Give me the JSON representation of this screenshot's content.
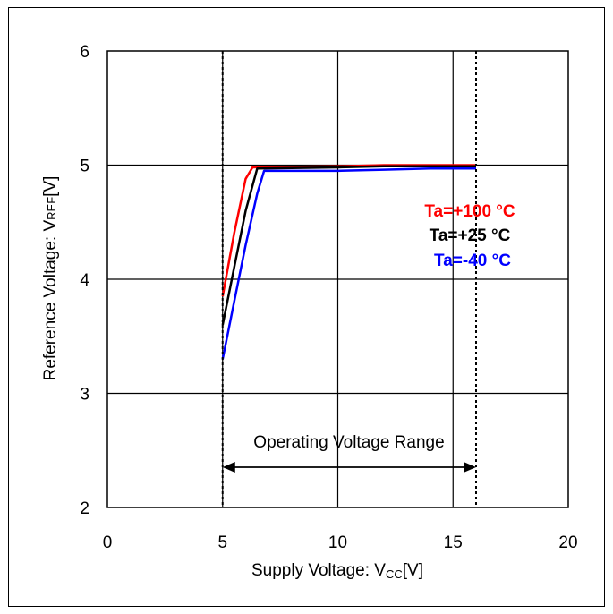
{
  "chart_data": {
    "type": "line",
    "title": "",
    "xlabel": "Supply Voltage: V",
    "xlabel_sub": "CC",
    "xlabel_unit": "[V]",
    "ylabel": "Reference Voltage: V",
    "ylabel_sub": "REF",
    "ylabel_unit": "[V]",
    "xlim": [
      0,
      20
    ],
    "ylim": [
      2,
      6
    ],
    "xticks": [
      0,
      5,
      10,
      15,
      20
    ],
    "yticks": [
      2,
      3,
      4,
      5,
      6
    ],
    "grid": true,
    "legend_position": "right",
    "series": [
      {
        "name": "Ta=+100 °C",
        "color": "#ff0000",
        "x": [
          5.0,
          5.5,
          6.0,
          6.3,
          8.0,
          10.0,
          12.0,
          14.0,
          16.0
        ],
        "y": [
          3.85,
          4.4,
          4.88,
          4.98,
          4.985,
          4.99,
          5.0,
          5.0,
          5.0
        ]
      },
      {
        "name": "Ta=+25 °C",
        "color": "#000000",
        "x": [
          5.0,
          5.5,
          6.0,
          6.5,
          8.0,
          10.0,
          12.0,
          14.0,
          16.0
        ],
        "y": [
          3.6,
          4.1,
          4.6,
          4.97,
          4.975,
          4.98,
          4.99,
          4.99,
          4.99
        ]
      },
      {
        "name": "Ta=-40 °C",
        "color": "#0000ff",
        "x": [
          5.0,
          5.5,
          6.0,
          6.5,
          6.8,
          8.0,
          10.0,
          12.0,
          14.0,
          16.0
        ],
        "y": [
          3.3,
          3.8,
          4.3,
          4.75,
          4.95,
          4.95,
          4.95,
          4.96,
          4.97,
          4.97
        ]
      }
    ],
    "range_markers": [
      5,
      16
    ],
    "range_label": "Operating Voltage Range"
  }
}
